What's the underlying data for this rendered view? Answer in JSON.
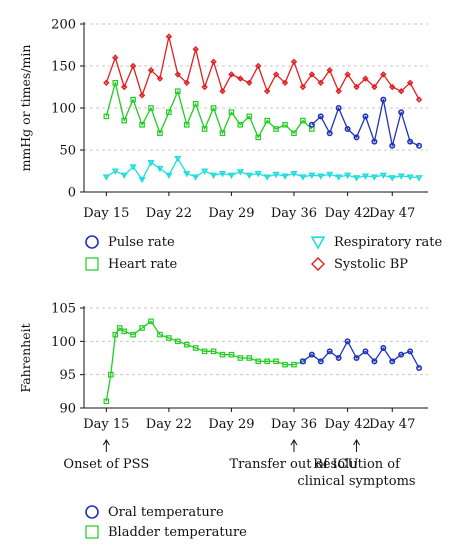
{
  "chart_data": [
    {
      "type": "line",
      "ylabel": "mmHg or times/min",
      "ylim": [
        0,
        200
      ],
      "yticks": [
        0,
        50,
        100,
        150,
        200
      ],
      "xlim": [
        12.5,
        51
      ],
      "xticks": [
        {
          "value": 15,
          "label": "Day 15"
        },
        {
          "value": 22,
          "label": "Day 22"
        },
        {
          "value": 29,
          "label": "Day 29"
        },
        {
          "value": 36,
          "label": "Day 36"
        },
        {
          "value": 42,
          "label": "Day 42"
        },
        {
          "value": 47,
          "label": "Day 47"
        }
      ],
      "grid": "horizontal-dashed",
      "legend": "below",
      "series": [
        {
          "name": "Systolic BP",
          "color": "#e02020",
          "marker": "diamond",
          "x": [
            15,
            16,
            17,
            18,
            19,
            20,
            21,
            22,
            23,
            24,
            25,
            26,
            27,
            28,
            29,
            30,
            31,
            32,
            33,
            34,
            35,
            36,
            37,
            38,
            39,
            40,
            41,
            42,
            43,
            44,
            45,
            46,
            47,
            48,
            49,
            50
          ],
          "y": [
            130,
            160,
            125,
            150,
            115,
            145,
            135,
            185,
            140,
            130,
            170,
            125,
            155,
            120,
            140,
            135,
            130,
            150,
            120,
            140,
            130,
            155,
            125,
            140,
            130,
            145,
            120,
            140,
            125,
            135,
            125,
            140,
            125,
            120,
            130,
            110
          ]
        },
        {
          "name": "Heart rate",
          "color": "#22cc22",
          "marker": "square",
          "x": [
            15,
            16,
            17,
            18,
            19,
            20,
            21,
            22,
            23,
            24,
            25,
            26,
            27,
            28,
            29,
            30,
            31,
            32,
            33,
            34,
            35,
            36,
            37,
            38
          ],
          "y": [
            90,
            130,
            85,
            110,
            80,
            100,
            70,
            95,
            120,
            80,
            105,
            75,
            100,
            70,
            95,
            80,
            90,
            65,
            85,
            75,
            80,
            70,
            85,
            75
          ]
        },
        {
          "name": "Pulse rate",
          "color": "#2233bb",
          "marker": "circle",
          "x": [
            38,
            39,
            40,
            41,
            42,
            43,
            44,
            45,
            46,
            47,
            48,
            49,
            50
          ],
          "y": [
            80,
            90,
            70,
            100,
            75,
            65,
            90,
            60,
            110,
            55,
            95,
            60,
            55
          ]
        },
        {
          "name": "Respiratory rate",
          "color": "#22dddd",
          "marker": "triangle",
          "x": [
            15,
            16,
            17,
            18,
            19,
            20,
            21,
            22,
            23,
            24,
            25,
            26,
            27,
            28,
            29,
            30,
            31,
            32,
            33,
            34,
            35,
            36,
            37,
            38,
            39,
            40,
            41,
            42,
            43,
            44,
            45,
            46,
            47,
            48,
            49,
            50
          ],
          "y": [
            18,
            25,
            20,
            30,
            15,
            35,
            28,
            20,
            40,
            22,
            18,
            25,
            20,
            22,
            20,
            24,
            20,
            22,
            18,
            21,
            19,
            22,
            18,
            20,
            19,
            21,
            18,
            20,
            17,
            19,
            18,
            20,
            17,
            19,
            18,
            17
          ]
        }
      ]
    },
    {
      "type": "line",
      "ylabel": "Fahrenheit",
      "ylim": [
        90,
        105
      ],
      "yticks": [
        90,
        95,
        100,
        105
      ],
      "xlim": [
        12.5,
        51
      ],
      "xticks": [
        {
          "value": 15,
          "label": "Day 15"
        },
        {
          "value": 22,
          "label": "Day 22"
        },
        {
          "value": 29,
          "label": "Day 29"
        },
        {
          "value": 36,
          "label": "Day 36"
        },
        {
          "value": 42,
          "label": "Day 42"
        },
        {
          "value": 47,
          "label": "Day 47"
        }
      ],
      "grid": "horizontal-dashed",
      "legend": "below",
      "series": [
        {
          "name": "Bladder temperature",
          "color": "#22cc22",
          "marker": "square",
          "x": [
            15,
            15.5,
            16,
            16.5,
            17,
            18,
            19,
            20,
            21,
            22,
            23,
            24,
            25,
            26,
            27,
            28,
            29,
            30,
            31,
            32,
            33,
            34,
            35,
            36,
            37
          ],
          "y": [
            91,
            95,
            101,
            102,
            101.5,
            101,
            102,
            103,
            101,
            100.5,
            100,
            99.5,
            99,
            98.5,
            98.5,
            98,
            98,
            97.5,
            97.5,
            97,
            97,
            97,
            96.5,
            96.5,
            97
          ]
        },
        {
          "name": "Oral temperature",
          "color": "#2233bb",
          "marker": "circle",
          "x": [
            37,
            38,
            39,
            40,
            41,
            42,
            43,
            44,
            45,
            46,
            47,
            48,
            49,
            50
          ],
          "y": [
            97,
            98,
            97,
            98.5,
            97.5,
            100,
            97.5,
            98.5,
            97,
            99,
            97,
            98,
            98.5,
            96
          ]
        }
      ],
      "annotations": [
        {
          "x": 15,
          "label": "Onset of PSS"
        },
        {
          "x": 36,
          "label": "Transfer out of ICU"
        },
        {
          "x": 43,
          "label": "Resolution of clinical symptoms"
        }
      ]
    }
  ]
}
